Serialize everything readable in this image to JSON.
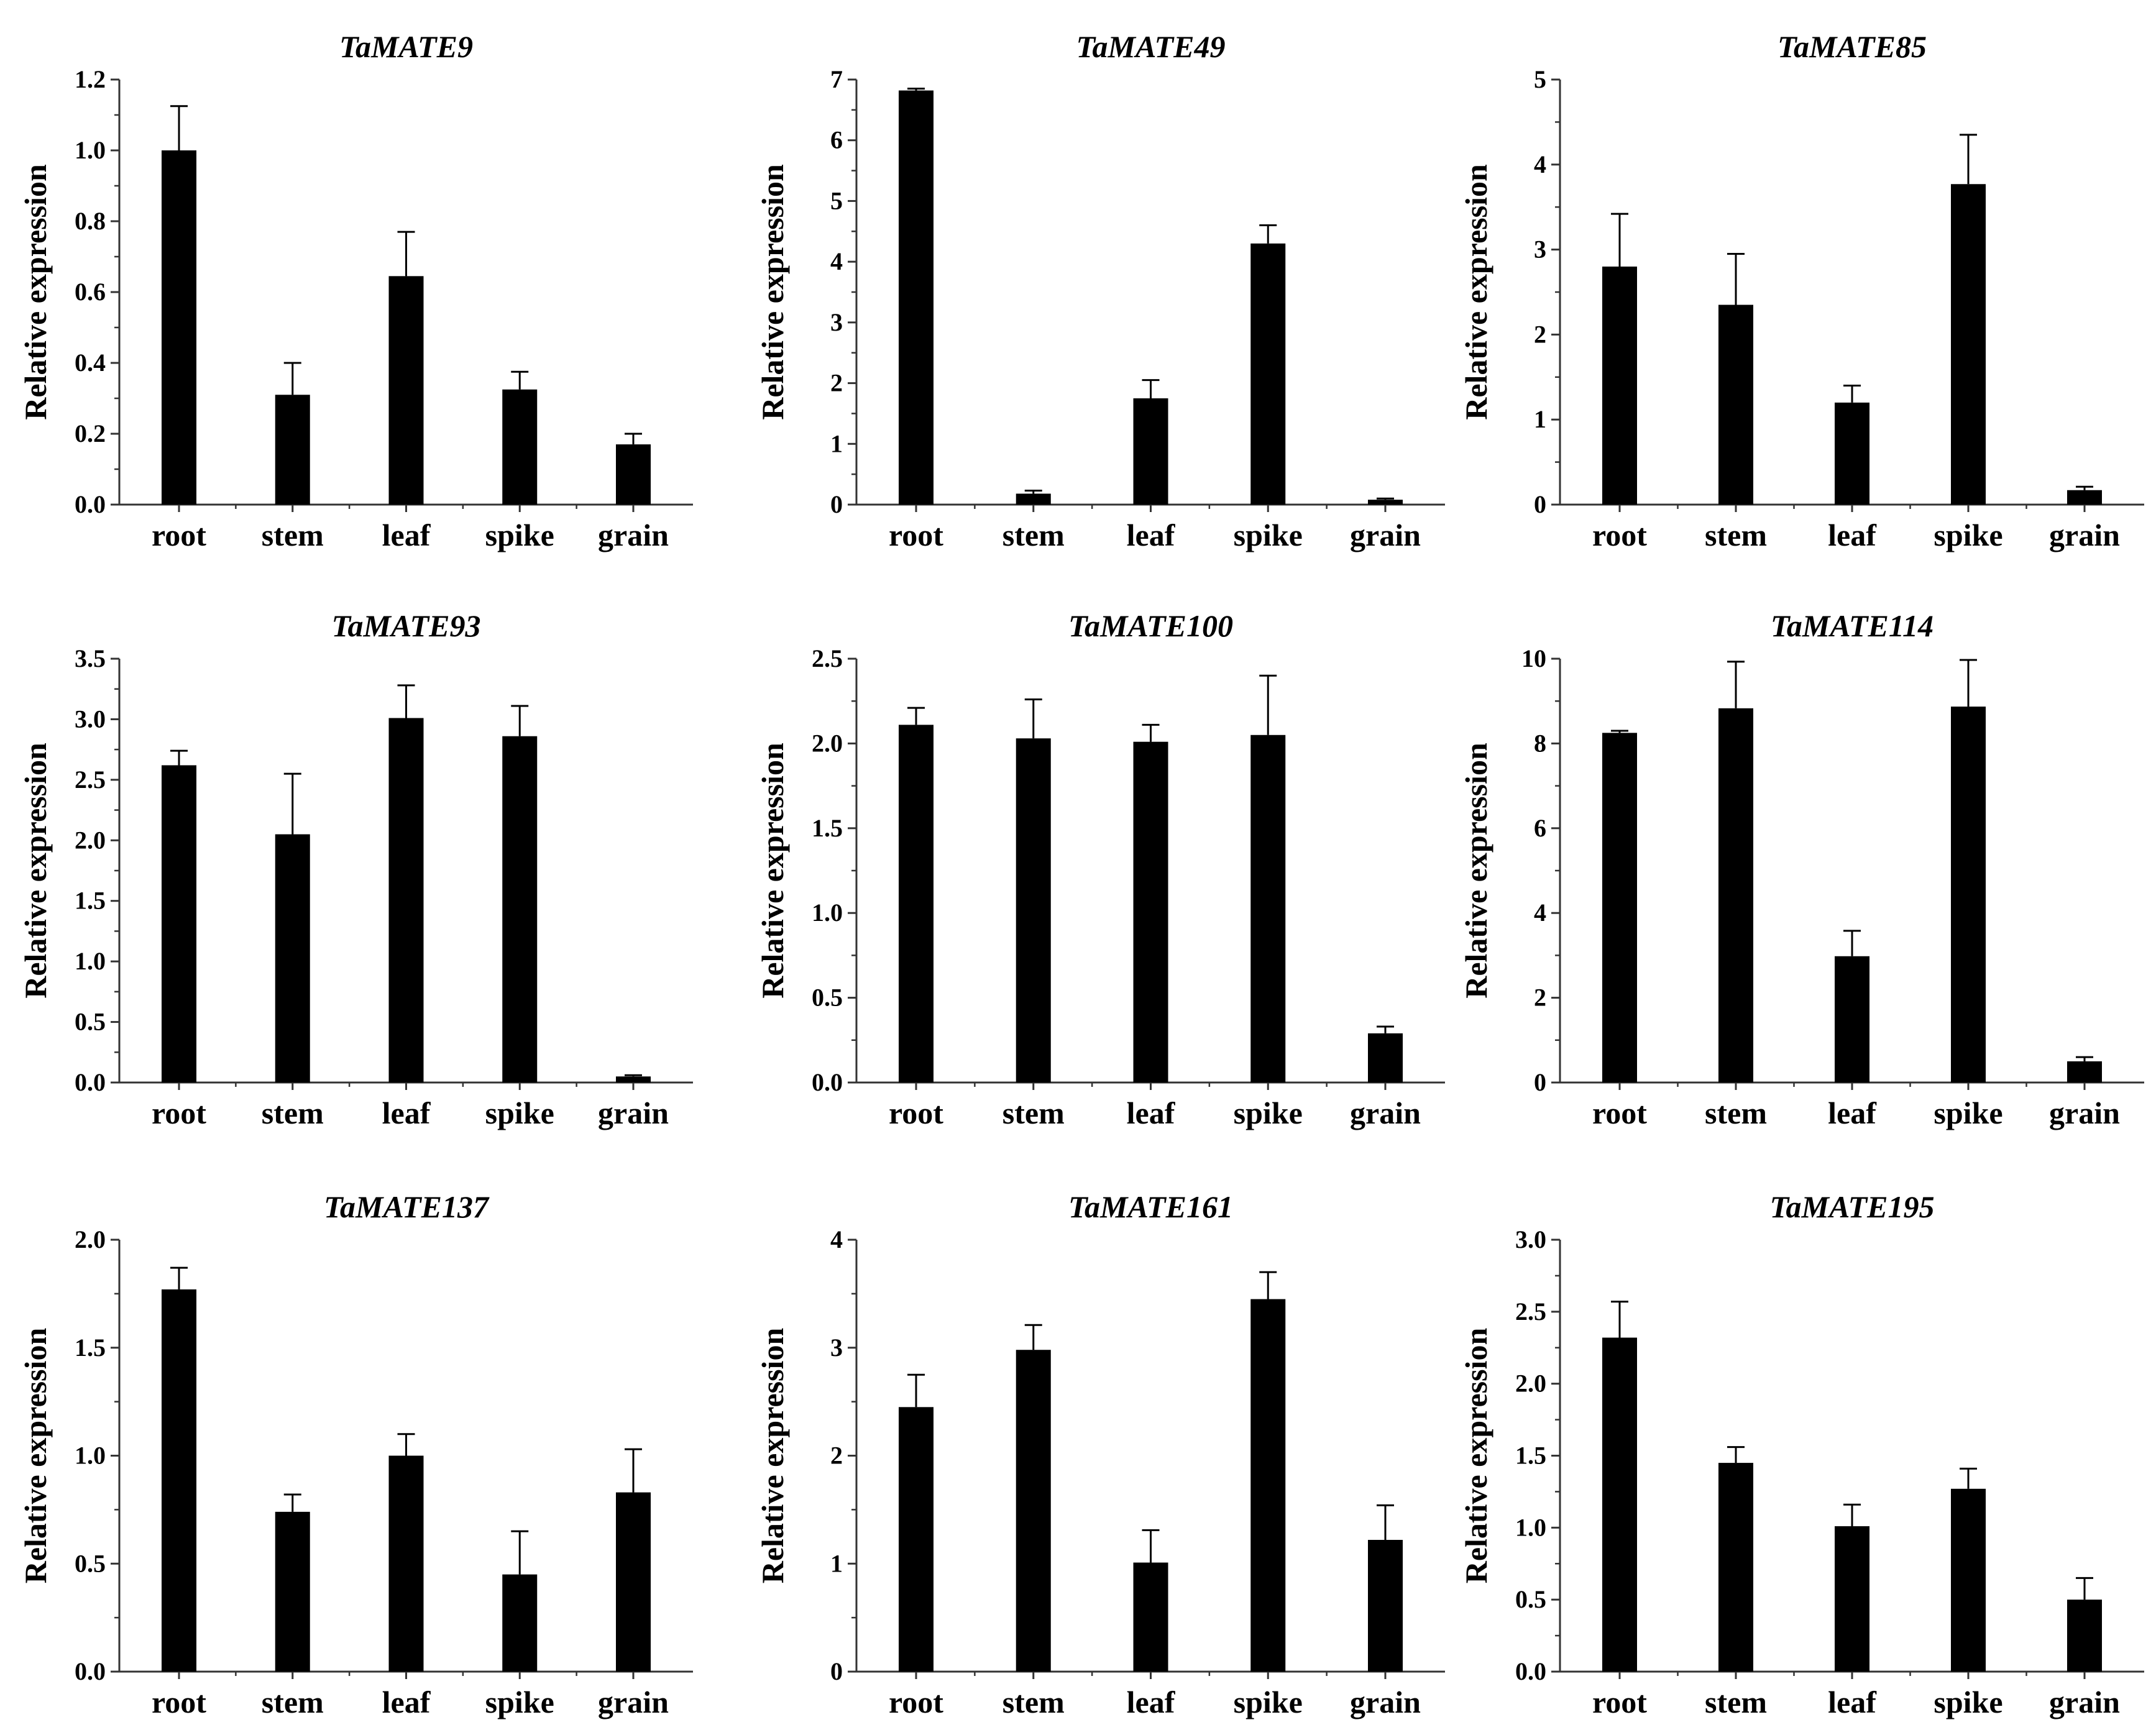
{
  "figure": {
    "background": "#ffffff",
    "bar_color": "#000000"
  },
  "chart_data": [
    {
      "type": "bar",
      "title": "TaMATE9",
      "xlabel": "",
      "ylabel": "Relative expression",
      "categories": [
        "root",
        "stem",
        "leaf",
        "spike",
        "grain"
      ],
      "values": [
        1.0,
        0.31,
        0.645,
        0.325,
        0.17
      ],
      "errors": [
        0.125,
        0.09,
        0.125,
        0.05,
        0.03
      ],
      "ylim": [
        0,
        1.2
      ],
      "yticks": [
        "0.0",
        "0.2",
        "0.4",
        "0.6",
        "0.8",
        "1.0",
        "1.2"
      ]
    },
    {
      "type": "bar",
      "title": "TaMATE49",
      "xlabel": "",
      "ylabel": "Relative expression",
      "categories": [
        "root",
        "stem",
        "leaf",
        "spike",
        "grain"
      ],
      "values": [
        6.82,
        0.18,
        1.75,
        4.3,
        0.08
      ],
      "errors": [
        0.03,
        0.05,
        0.3,
        0.3,
        0.02
      ],
      "ylim": [
        0,
        7
      ],
      "yticks": [
        "0",
        "1",
        "2",
        "3",
        "4",
        "5",
        "6",
        "7"
      ]
    },
    {
      "type": "bar",
      "title": "TaMATE85",
      "xlabel": "",
      "ylabel": "Relative expression",
      "categories": [
        "root",
        "stem",
        "leaf",
        "spike",
        "grain"
      ],
      "values": [
        2.8,
        2.35,
        1.2,
        3.77,
        0.17
      ],
      "errors": [
        0.62,
        0.6,
        0.2,
        0.58,
        0.04
      ],
      "ylim": [
        0,
        5
      ],
      "yticks": [
        "0",
        "1",
        "2",
        "3",
        "4",
        "5"
      ]
    },
    {
      "type": "bar",
      "title": "TaMATE93",
      "xlabel": "",
      "ylabel": "Relative expression",
      "categories": [
        "root",
        "stem",
        "leaf",
        "spike",
        "grain"
      ],
      "values": [
        2.62,
        2.05,
        3.01,
        2.86,
        0.05
      ],
      "errors": [
        0.12,
        0.5,
        0.27,
        0.25,
        0.01
      ],
      "ylim": [
        0,
        3.5
      ],
      "yticks": [
        "0.0",
        "0.5",
        "1.0",
        "1.5",
        "2.0",
        "2.5",
        "3.0",
        "3.5"
      ]
    },
    {
      "type": "bar",
      "title": "TaMATE100",
      "xlabel": "",
      "ylabel": "Relative expression",
      "categories": [
        "root",
        "stem",
        "leaf",
        "spike",
        "grain"
      ],
      "values": [
        2.11,
        2.03,
        2.01,
        2.05,
        0.29
      ],
      "errors": [
        0.1,
        0.23,
        0.1,
        0.35,
        0.04
      ],
      "ylim": [
        0,
        2.5
      ],
      "yticks": [
        "0.0",
        "0.5",
        "1.0",
        "1.5",
        "2.0",
        "2.5"
      ]
    },
    {
      "type": "bar",
      "title": "TaMATE114",
      "xlabel": "",
      "ylabel": "Relative expression",
      "categories": [
        "root",
        "stem",
        "leaf",
        "spike",
        "grain"
      ],
      "values": [
        8.25,
        8.83,
        2.98,
        8.87,
        0.5
      ],
      "errors": [
        0.05,
        1.1,
        0.6,
        1.1,
        0.1
      ],
      "ylim": [
        0,
        10
      ],
      "yticks": [
        "0",
        "2",
        "4",
        "6",
        "8",
        "10"
      ]
    },
    {
      "type": "bar",
      "title": "TaMATE137",
      "xlabel": "",
      "ylabel": "Relative expression",
      "categories": [
        "root",
        "stem",
        "leaf",
        "spike",
        "grain"
      ],
      "values": [
        1.77,
        0.74,
        1.0,
        0.45,
        0.83
      ],
      "errors": [
        0.1,
        0.08,
        0.1,
        0.2,
        0.2
      ],
      "ylim": [
        0,
        2.0
      ],
      "yticks": [
        "0.0",
        "0.5",
        "1.0",
        "1.5",
        "2.0"
      ]
    },
    {
      "type": "bar",
      "title": "TaMATE161",
      "xlabel": "",
      "ylabel": "Relative expression",
      "categories": [
        "root",
        "stem",
        "leaf",
        "spike",
        "grain"
      ],
      "values": [
        2.45,
        2.98,
        1.01,
        3.45,
        1.22
      ],
      "errors": [
        0.3,
        0.23,
        0.3,
        0.25,
        0.32
      ],
      "ylim": [
        0,
        4
      ],
      "yticks": [
        "0",
        "1",
        "2",
        "3",
        "4"
      ]
    },
    {
      "type": "bar",
      "title": "TaMATE195",
      "xlabel": "",
      "ylabel": "Relative expression",
      "categories": [
        "root",
        "stem",
        "leaf",
        "spike",
        "grain"
      ],
      "values": [
        2.32,
        1.45,
        1.01,
        1.27,
        0.5
      ],
      "errors": [
        0.25,
        0.11,
        0.15,
        0.14,
        0.15
      ],
      "ylim": [
        0,
        3.0
      ],
      "yticks": [
        "0.0",
        "0.5",
        "1.0",
        "1.5",
        "2.0",
        "2.5",
        "3.0"
      ]
    }
  ]
}
